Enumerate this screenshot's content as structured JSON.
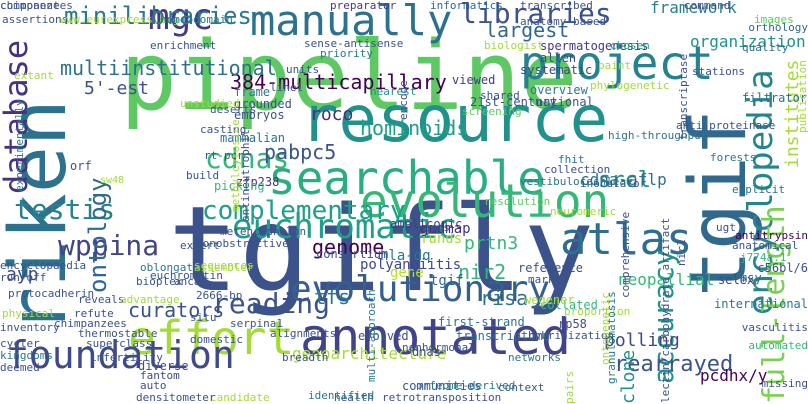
{
  "words": [
    {
      "text": "tgifly",
      "color": "#3b528b",
      "rot": 0
    },
    {
      "text": "pipeline",
      "color": "#5ec962",
      "rot": 0
    },
    {
      "text": "riken",
      "color": "#2c728e",
      "rot": -90
    },
    {
      "text": "resource",
      "color": "#21918c",
      "rot": 0
    },
    {
      "text": "tgif",
      "color": "#31688e",
      "rot": -90
    },
    {
      "text": "annotated",
      "color": "#414487",
      "rot": 0
    },
    {
      "text": "searchable",
      "color": "#28ae80",
      "rot": 0
    },
    {
      "text": "effort",
      "color": "#a5db36",
      "rot": 0
    },
    {
      "text": "project",
      "color": "#26828e",
      "rot": 0
    },
    {
      "text": "evolution",
      "color": "#35b779",
      "rot": 0
    },
    {
      "text": "manually",
      "color": "#2c728e",
      "rot": 0
    },
    {
      "text": "atlas",
      "color": "#2e6e8e",
      "rot": 0
    },
    {
      "text": "mgc",
      "color": "#443983",
      "rot": 0
    },
    {
      "text": "foundation",
      "color": "#3e4a89",
      "rot": 0
    },
    {
      "text": "database",
      "color": "#46327e",
      "rot": -90
    },
    {
      "text": "euchromatic",
      "color": "#1f9e89",
      "rot": 0
    },
    {
      "text": "evolutionary",
      "color": "#355f8d",
      "rot": 0
    },
    {
      "text": "libraries",
      "color": "#3b528b",
      "rot": 0
    },
    {
      "text": "minilibraries",
      "color": "#2a788e",
      "rot": 0
    },
    {
      "text": "encyclopedia",
      "color": "#25858e",
      "rot": -90
    },
    {
      "text": "reading",
      "color": "#3b528b",
      "rot": 0
    },
    {
      "text": "wppina",
      "color": "#414487",
      "rot": 0
    },
    {
      "text": "testis",
      "color": "#26828e",
      "rot": 0
    },
    {
      "text": "full-length",
      "color": "#7ad151",
      "rot": -90
    },
    {
      "text": "accuracy",
      "color": "#21918c",
      "rot": -90
    },
    {
      "text": "cdnas",
      "color": "#35b779",
      "rot": 0
    },
    {
      "text": "complementary",
      "color": "#1f9e89",
      "rot": 0
    },
    {
      "text": "384-multicapillary",
      "color": "#440154",
      "rot": 0
    },
    {
      "text": "ontology",
      "color": "#31688e",
      "rot": -90
    },
    {
      "text": "genome",
      "color": "#440154",
      "rot": 0
    },
    {
      "text": "rearrayed",
      "color": "#3b528b",
      "rot": 0
    },
    {
      "text": "genoarchitecture",
      "color": "#a5db36",
      "rot": 0
    },
    {
      "text": "polling",
      "color": "#3e4a89",
      "rot": 0
    },
    {
      "text": "curators",
      "color": "#3b528b",
      "rot": 0
    },
    {
      "text": "hominoids",
      "color": "#1f9e89",
      "rot": 0
    },
    {
      "text": "pabpc5",
      "color": "#3b528b",
      "rot": 0
    },
    {
      "text": "multiinstitutional",
      "color": "#2c728e",
      "rot": 0
    },
    {
      "text": "5'-est",
      "color": "#3b528b",
      "rot": 0
    },
    {
      "text": "roco",
      "color": "#46327e",
      "rot": 0
    },
    {
      "text": "prtn3",
      "color": "#35b779",
      "rot": 0
    },
    {
      "text": "nir2",
      "color": "#35b779",
      "rot": 0
    },
    {
      "text": "risa",
      "color": "#2c728e",
      "rot": 0
    },
    {
      "text": "srcl",
      "color": "#21918c",
      "rot": 0
    },
    {
      "text": "tfs",
      "color": "#2a788e",
      "rot": 0
    },
    {
      "text": "ayp",
      "color": "#3e4a89",
      "rot": 0
    },
    {
      "text": "clone",
      "color": "#21918c",
      "rot": -90
    },
    {
      "text": "pcdhx/y",
      "color": "#440154",
      "rot": 0
    },
    {
      "text": "neopallial",
      "color": "#35b779",
      "rot": 0
    },
    {
      "text": "largest",
      "color": "#31688e",
      "rot": 0
    },
    {
      "text": "framework",
      "color": "#26828e",
      "rot": 0
    },
    {
      "text": "organization",
      "color": "#21918c",
      "rot": 0
    },
    {
      "text": "institutes",
      "color": "#a5db36",
      "rot": -90
    },
    {
      "text": "cdna-aflp",
      "color": "#2c728e",
      "rot": 0
    },
    {
      "text": "funds",
      "color": "#a5db36",
      "rot": 0
    },
    {
      "text": "gudmap",
      "color": "#46327e",
      "rot": 0
    },
    {
      "text": "orf",
      "color": "#3b528b",
      "rot": 0
    },
    {
      "text": "gene",
      "color": "#b5de2b",
      "rot": 0
    },
    {
      "text": "hla-dq",
      "color": "#2a788e",
      "rot": 0
    },
    {
      "text": "polyangiitis",
      "color": "#3e4a89",
      "rot": 0
    },
    {
      "text": "tgif",
      "color": "#31688e",
      "rot": 0
    },
    {
      "text": "transcriptome",
      "color": "#2c728e",
      "rot": 0
    },
    {
      "text": "first-strand",
      "color": "#2c728e",
      "rot": 0
    },
    {
      "text": "collated",
      "color": "#35b779",
      "rot": 0
    },
    {
      "text": "ampliconic",
      "color": "#443983",
      "rot": 0
    },
    {
      "text": "zfp238",
      "color": "#46327e",
      "rot": 0
    },
    {
      "text": "picking",
      "color": "#35b779",
      "rot": 0
    },
    {
      "text": "grounded",
      "color": "#3b528b",
      "rot": 0
    },
    {
      "text": "frame",
      "color": "#2a788e",
      "rot": 0
    },
    {
      "text": "embryos",
      "color": "#3b528b",
      "rot": 0
    },
    {
      "text": "mammalian",
      "color": "#2c728e",
      "rot": 0
    },
    {
      "text": "sw48",
      "color": "#a5db36",
      "rot": 0
    },
    {
      "text": "viewed",
      "color": "#443983",
      "rot": 0
    },
    {
      "text": "allen",
      "color": "#3e4a89",
      "rot": 0
    },
    {
      "text": "spermatogenesis",
      "color": "#443983",
      "rot": 0
    },
    {
      "text": "systematic",
      "color": "#414487",
      "rot": 0
    },
    {
      "text": "overview",
      "color": "#2a788e",
      "rot": 0
    },
    {
      "text": "national",
      "color": "#3b528b",
      "rot": 0
    },
    {
      "text": "21st-century",
      "color": "#3b528b",
      "rot": 0
    },
    {
      "text": "screening",
      "color": "#5ec962",
      "rot": 0
    },
    {
      "text": "shared",
      "color": "#3b528b",
      "rot": 0
    },
    {
      "text": "nearest",
      "color": "#21918c",
      "rot": 0
    },
    {
      "text": "priority",
      "color": "#2a788e",
      "rot": 0
    },
    {
      "text": "sense-antisense",
      "color": "#3b528b",
      "rot": 0
    },
    {
      "text": "preparator",
      "color": "#443983",
      "rot": 0
    },
    {
      "text": "informatics",
      "color": "#31688e",
      "rot": 0
    },
    {
      "text": "transcribed",
      "color": "#3b528b",
      "rot": 0
    },
    {
      "text": "command",
      "color": "#3e4a89",
      "rot": 0
    },
    {
      "text": "images",
      "color": "#5ec962",
      "rot": 0
    },
    {
      "text": "orthology",
      "color": "#31688e",
      "rot": 0
    },
    {
      "text": "quality",
      "color": "#31688e",
      "rot": 0
    },
    {
      "text": "stations",
      "color": "#3b528b",
      "rot": 0
    },
    {
      "text": "filtrator",
      "color": "#2c728e",
      "rot": 0
    },
    {
      "text": "chosen",
      "color": "#1f9e89",
      "rot": 0
    },
    {
      "text": "paint",
      "color": "#a5db36",
      "rot": 0
    },
    {
      "text": "phylogenetic",
      "color": "#a5db36",
      "rot": 0
    },
    {
      "text": "high-throughput",
      "color": "#2c728e",
      "rot": 0
    },
    {
      "text": "anti-proteinase",
      "color": "#3b528b",
      "rot": 0
    },
    {
      "text": "forests",
      "color": "#2a788e",
      "rot": 0
    },
    {
      "text": "explicit",
      "color": "#2c728e",
      "rot": 0
    },
    {
      "text": "antitrypsin",
      "color": "#440154",
      "rot": 0
    },
    {
      "text": "anatomical",
      "color": "#3b528b",
      "rot": 0
    },
    {
      "text": "c56bl/6",
      "color": "#3b528b",
      "rot": 0
    },
    {
      "text": "j774a.1",
      "color": "#35b779",
      "rot": 0
    },
    {
      "text": "msy",
      "color": "#31688e",
      "rot": 0
    },
    {
      "text": "international",
      "color": "#2a788e",
      "rot": 0
    },
    {
      "text": "selex",
      "color": "#3e4a89",
      "rot": 0
    },
    {
      "text": "automated",
      "color": "#35b779",
      "rot": 0
    },
    {
      "text": "vasculitis",
      "color": "#3b528b",
      "rot": 0
    },
    {
      "text": "missing",
      "color": "#3b528b",
      "rot": 0
    },
    {
      "text": "inoculator",
      "color": "#3b528b",
      "rot": 0
    },
    {
      "text": "collection",
      "color": "#3b528b",
      "rot": 0
    },
    {
      "text": "fhit",
      "color": "#2c728e",
      "rot": 0
    },
    {
      "text": "neuromeric",
      "color": "#a5db36",
      "rot": 0
    },
    {
      "text": "resolution",
      "color": "#5ec962",
      "rot": 0
    },
    {
      "text": "vestibulocochlear",
      "color": "#2c728e",
      "rot": 0
    },
    {
      "text": "reference",
      "color": "#3b528b",
      "rot": 0
    },
    {
      "text": "markov",
      "color": "#3b528b",
      "rot": 0
    },
    {
      "text": "wegener",
      "color": "#a5db36",
      "rot": 0
    },
    {
      "text": "rp58",
      "color": "#3b528b",
      "rot": 0
    },
    {
      "text": "hybridization",
      "color": "#3b528b",
      "rot": 0
    },
    {
      "text": "proportion",
      "color": "#a5db36",
      "rot": 0
    },
    {
      "text": "networks",
      "color": "#2a788e",
      "rot": 0
    },
    {
      "text": "context",
      "color": "#3b528b",
      "rot": 0
    },
    {
      "text": "communities",
      "color": "#3b528b",
      "rot": 0
    },
    {
      "text": "retrotransposition",
      "color": "#3b528b",
      "rot": 0
    },
    {
      "text": "health",
      "color": "#3b528b",
      "rot": 0
    },
    {
      "text": "identified",
      "color": "#2a788e",
      "rot": 0
    },
    {
      "text": "candidate",
      "color": "#a5db36",
      "rot": 0
    },
    {
      "text": "densitometer",
      "color": "#3b528b",
      "rot": 0
    },
    {
      "text": "diverse",
      "color": "#3b528b",
      "rot": 0
    },
    {
      "text": "fantom",
      "color": "#3e4a89",
      "rot": 0
    },
    {
      "text": "infertility",
      "color": "#3b528b",
      "rot": 0
    },
    {
      "text": "superclass",
      "color": "#3b528b",
      "rot": 0
    },
    {
      "text": "thermostable",
      "color": "#3b528b",
      "rot": 0
    },
    {
      "text": "chimpanzees",
      "color": "#3b528b",
      "rot": 0
    },
    {
      "text": "refute",
      "color": "#3b528b",
      "rot": 0
    },
    {
      "text": "reveals",
      "color": "#3b528b",
      "rot": 0
    },
    {
      "text": "advantage",
      "color": "#a5db36",
      "rot": 0
    },
    {
      "text": "physical",
      "color": "#a5db36",
      "rot": 0
    },
    {
      "text": "inventory",
      "color": "#3b528b",
      "rot": 0
    },
    {
      "text": "cycler",
      "color": "#3b528b",
      "rot": 0
    },
    {
      "text": "kingdoms",
      "color": "#2a788e",
      "rot": 0
    },
    {
      "text": "deemed",
      "color": "#3b528b",
      "rot": 0
    },
    {
      "text": "oblongata",
      "color": "#2a788e",
      "rot": 0
    },
    {
      "text": "bioplex",
      "color": "#3b528b",
      "rot": 0
    },
    {
      "text": "anca",
      "color": "#3b528b",
      "rot": 0
    },
    {
      "text": "2666-bp",
      "color": "#3b528b",
      "rot": 0
    },
    {
      "text": "situ",
      "color": "#3b528b",
      "rot": 0
    },
    {
      "text": "domestic",
      "color": "#3b528b",
      "rot": 0
    },
    {
      "text": "serpina1",
      "color": "#3b528b",
      "rot": 0
    },
    {
      "text": "alignments",
      "color": "#3b528b",
      "rot": 0
    },
    {
      "text": "breadth",
      "color": "#3b528b",
      "rot": 0
    },
    {
      "text": "evolved",
      "color": "#3b528b",
      "rot": 0
    },
    {
      "text": "nonhormonal",
      "color": "#3b528b",
      "rot": 0
    },
    {
      "text": "orfeome-derived",
      "color": "#2a788e",
      "rot": 0
    },
    {
      "text": "dnas",
      "color": "#3b528b",
      "rot": 0
    },
    {
      "text": "expert",
      "color": "#3b528b",
      "rot": 0
    },
    {
      "text": "sequences",
      "color": "#a5db36",
      "rot": 0
    },
    {
      "text": "consortium",
      "color": "#3b528b",
      "rot": 0
    },
    {
      "text": "metencephalon",
      "color": "#3b528b",
      "rot": 0
    },
    {
      "text": "nonobstructive",
      "color": "#3b528b",
      "rot": 0
    },
    {
      "text": "assembler",
      "color": "#a5db36",
      "rot": 0
    },
    {
      "text": "euchromatin",
      "color": "#3b528b",
      "rot": 0
    },
    {
      "text": "run-off",
      "color": "#3b528b",
      "rot": 0
    },
    {
      "text": "encyclopaedia",
      "color": "#3b528b",
      "rot": 0
    },
    {
      "text": "protocadherin",
      "color": "#3b528b",
      "rot": 0
    },
    {
      "text": "assertions",
      "color": "#3b528b",
      "rot": 0
    },
    {
      "text": "www.eurexpress.org",
      "color": "#a5db36",
      "rot": 0
    },
    {
      "text": "homeodomain",
      "color": "#2a788e",
      "rot": 0
    },
    {
      "text": "enrichment",
      "color": "#3b528b",
      "rot": 0
    },
    {
      "text": "biologist",
      "color": "#a5db36",
      "rot": 0
    },
    {
      "text": "anatomy-based",
      "color": "#3b528b",
      "rot": 0
    },
    {
      "text": "units",
      "color": "#3b528b",
      "rot": 0
    },
    {
      "text": "linel",
      "color": "#3b528b",
      "rot": 0
    },
    {
      "text": "casting",
      "color": "#3b528b",
      "rot": 0
    },
    {
      "text": "unstudied",
      "color": "#a5db36",
      "rot": 0
    },
    {
      "text": "rt-pcr",
      "color": "#3b528b",
      "rot": 0
    },
    {
      "text": "build",
      "color": "#3b528b",
      "rot": 0
    },
    {
      "text": "deserts",
      "color": "#3b528b",
      "rot": 0
    },
    {
      "text": "extant",
      "color": "#a5db36",
      "rot": 0
    },
    {
      "text": "experimentally",
      "color": "#2a788e",
      "rot": -90
    },
    {
      "text": "antineutrophil",
      "color": "#3b528b",
      "rot": -90
    },
    {
      "text": "methylcytosine",
      "color": "#a5db36",
      "rot": -90
    },
    {
      "text": "encode",
      "color": "#3b528b",
      "rot": -90
    },
    {
      "text": "multi-approach",
      "color": "#2a788e",
      "rot": -90
    },
    {
      "text": "ontogenetic",
      "color": "#a5db36",
      "rot": -90
    },
    {
      "text": "lectin/carbohydrate artifact",
      "color": "#3b528b",
      "rot": -90
    },
    {
      "text": "comprehensive",
      "color": "#3b528b",
      "rot": -90
    },
    {
      "text": "granulomatosis",
      "color": "#2a788e",
      "rot": -90
    },
    {
      "text": "transcriptase",
      "color": "#3b528b",
      "rot": -90
    },
    {
      "text": "publication",
      "color": "#a5db36",
      "rot": -90
    },
    {
      "text": "pairs",
      "color": "#a5db36",
      "rot": -90
    },
    {
      "text": "nir1",
      "color": "#3b528b",
      "rot": -90
    },
    {
      "text": "ugt",
      "color": "#3b528b",
      "rot": 0
    },
    {
      "text": "e9",
      "color": "#3b528b",
      "rot": 0
    },
    {
      "text": "pos",
      "color": "#3b528b",
      "rot": 0
    },
    {
      "text": "auto",
      "color": "#3b528b",
      "rot": 0
    },
    {
      "text": "component",
      "color": "#3b528b",
      "rot": 0
    },
    {
      "text": "chimpanzees",
      "color": "#3b528b",
      "rot": 0
    }
  ]
}
